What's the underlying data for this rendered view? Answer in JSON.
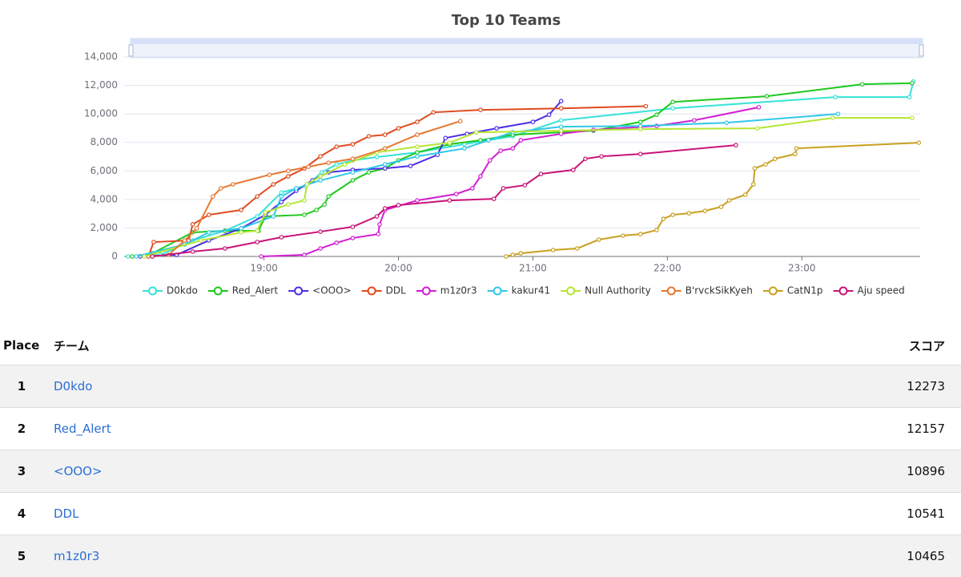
{
  "chart_data": {
    "type": "line",
    "title": "Top 10 Teams",
    "xlim": [
      17.96,
      23.88
    ],
    "xticks": [
      {
        "value": 19,
        "label": "19:00"
      },
      {
        "value": 20,
        "label": "20:00"
      },
      {
        "value": 21,
        "label": "21:00"
      },
      {
        "value": 22,
        "label": "22:00"
      },
      {
        "value": 23,
        "label": "23:00"
      }
    ],
    "ylim": [
      0,
      14000
    ],
    "yticks": [
      0,
      {
        "value": 2000,
        "label": "2,000"
      },
      {
        "value": 4000,
        "label": "4,000"
      },
      {
        "value": 6000,
        "label": "6,000"
      },
      {
        "value": 8000,
        "label": "8,000"
      },
      {
        "value": 10000,
        "label": "10,000"
      },
      {
        "value": 12000,
        "label": "12,000"
      },
      {
        "value": 14000,
        "label": "14,000"
      }
    ],
    "grid": true,
    "series": [
      {
        "name": "D0kdo",
        "color": "#36e2d8",
        "x": [
          17.99,
          18.23,
          18.47,
          18.71,
          18.95,
          19.13,
          19.31,
          19.43,
          19.54,
          19.66,
          19.84,
          20.14,
          20.49,
          20.85,
          21.21,
          22.04,
          23.25,
          23.8,
          23.83
        ],
        "values": [
          0,
          110,
          1120,
          1800,
          2810,
          4490,
          4940,
          5900,
          6460,
          6740,
          6970,
          7300,
          7870,
          8430,
          9550,
          10390,
          11180,
          11180,
          12273
        ]
      },
      {
        "name": "Red_Alert",
        "color": "#1ec81e",
        "x": [
          18.02,
          18.17,
          18.47,
          18.71,
          18.96,
          19.01,
          19.3,
          19.39,
          19.45,
          19.48,
          19.66,
          19.78,
          19.9,
          20.0,
          20.14,
          20.38,
          20.61,
          20.85,
          21.21,
          21.45,
          21.8,
          21.92,
          22.04,
          22.74,
          23.45,
          23.82
        ],
        "values": [
          0,
          220,
          1690,
          1800,
          1800,
          2810,
          2920,
          3260,
          3650,
          4210,
          5340,
          5900,
          6180,
          6740,
          7300,
          7870,
          8150,
          8540,
          8710,
          8820,
          9440,
          9940,
          10840,
          11240,
          12080,
          12157
        ]
      },
      {
        "name": "<OOO>",
        "color": "#4b2ee6",
        "x": [
          18.08,
          18.35,
          18.59,
          18.83,
          19.01,
          19.13,
          19.24,
          19.36,
          19.48,
          19.66,
          19.9,
          20.09,
          20.29,
          20.35,
          20.51,
          20.73,
          21.0,
          21.12,
          21.21
        ],
        "values": [
          0,
          110,
          1120,
          1970,
          2920,
          3820,
          4610,
          5340,
          5900,
          6070,
          6180,
          6350,
          7130,
          8310,
          8600,
          8990,
          9440,
          9940,
          10896
        ]
      },
      {
        "name": "DDL",
        "color": "#e04a1e",
        "x": [
          18.14,
          18.18,
          18.44,
          18.47,
          18.59,
          18.83,
          18.95,
          19.07,
          19.18,
          19.3,
          19.42,
          19.54,
          19.66,
          19.78,
          19.9,
          20.0,
          20.14,
          20.26,
          20.61,
          21.21,
          21.84
        ],
        "values": [
          0,
          1010,
          1120,
          2250,
          2920,
          3260,
          4210,
          5060,
          5620,
          6180,
          7020,
          7700,
          7870,
          8430,
          8540,
          8990,
          9440,
          10110,
          10280,
          10390,
          10541
        ]
      },
      {
        "name": "m1z0r3",
        "color": "#d21ed2",
        "x": [
          18.98,
          19.3,
          19.42,
          19.54,
          19.66,
          19.85,
          19.86,
          19.9,
          20.14,
          20.43,
          20.55,
          20.61,
          20.68,
          20.76,
          20.85,
          20.91,
          21.21,
          21.45,
          21.92,
          22.2,
          22.68
        ],
        "values": [
          0,
          110,
          560,
          960,
          1290,
          1570,
          2250,
          3260,
          3930,
          4380,
          4780,
          5620,
          6740,
          7420,
          7580,
          8150,
          8600,
          8880,
          9160,
          9550,
          10465
        ]
      },
      {
        "name": "kakur41",
        "color": "#30c8e8",
        "x": [
          18.05,
          18.41,
          18.59,
          18.83,
          19.07,
          19.13,
          19.24,
          19.42,
          19.66,
          19.9,
          20.14,
          20.49,
          20.67,
          20.85,
          21.21,
          21.8,
          22.44,
          23.27
        ],
        "values": [
          0,
          840,
          1690,
          1970,
          2810,
          4210,
          4780,
          5340,
          5900,
          6460,
          7020,
          7580,
          8150,
          8710,
          9100,
          9160,
          9380,
          10000
        ]
      },
      {
        "name": "Null Authority",
        "color": "#b4e632",
        "x": [
          18.11,
          18.53,
          18.83,
          18.95,
          19.01,
          19.18,
          19.3,
          19.32,
          19.42,
          19.6,
          19.84,
          20.14,
          20.38,
          20.58,
          21.21,
          21.8,
          22.67,
          23.23,
          23.82
        ],
        "values": [
          0,
          1120,
          1690,
          1800,
          3090,
          3650,
          3930,
          5060,
          5620,
          6460,
          7300,
          7700,
          7980,
          8710,
          8820,
          8930,
          8990,
          9720,
          9720
        ]
      },
      {
        "name": "B'rvckSikKyeh",
        "color": "#e67832",
        "x": [
          18.17,
          18.29,
          18.41,
          18.5,
          18.62,
          18.68,
          18.77,
          19.04,
          19.18,
          19.33,
          19.48,
          19.66,
          19.9,
          20.14,
          20.46
        ],
        "values": [
          0,
          110,
          1120,
          1970,
          4210,
          4780,
          5060,
          5730,
          6010,
          6290,
          6570,
          6850,
          7580,
          8540,
          9490
        ]
      },
      {
        "name": "CatN1p",
        "color": "#c8a01e",
        "x": [
          20.8,
          20.85,
          20.91,
          21.15,
          21.33,
          21.49,
          21.67,
          21.8,
          21.92,
          21.97,
          22.04,
          22.16,
          22.28,
          22.4,
          22.46,
          22.58,
          22.64,
          22.65,
          22.73,
          22.8,
          22.95,
          22.96,
          23.87
        ],
        "values": [
          0,
          110,
          220,
          450,
          560,
          1180,
          1460,
          1570,
          1850,
          2640,
          2920,
          3030,
          3200,
          3480,
          3930,
          4330,
          5060,
          6180,
          6460,
          6850,
          7190,
          7580,
          7980
        ]
      },
      {
        "name": "Aju speed",
        "color": "#c81478",
        "x": [
          18.17,
          18.47,
          18.71,
          18.95,
          19.13,
          19.42,
          19.66,
          19.84,
          19.9,
          20.0,
          20.38,
          20.71,
          20.78,
          20.94,
          21.06,
          21.3,
          21.39,
          21.51,
          21.8,
          22.51
        ],
        "values": [
          0,
          340,
          560,
          1010,
          1350,
          1740,
          2080,
          2810,
          3370,
          3600,
          3930,
          4040,
          4780,
          5000,
          5790,
          6070,
          6850,
          7020,
          7190,
          7810
        ]
      }
    ]
  },
  "table": {
    "columns": [
      "Place",
      "チーム",
      "スコア"
    ],
    "rows": [
      [
        1,
        "D0kdo",
        12273
      ],
      [
        2,
        "Red_Alert",
        12157
      ],
      [
        3,
        "<OOO>",
        10896
      ],
      [
        4,
        "DDL",
        10541
      ],
      [
        5,
        "m1z0r3",
        10465
      ]
    ]
  }
}
